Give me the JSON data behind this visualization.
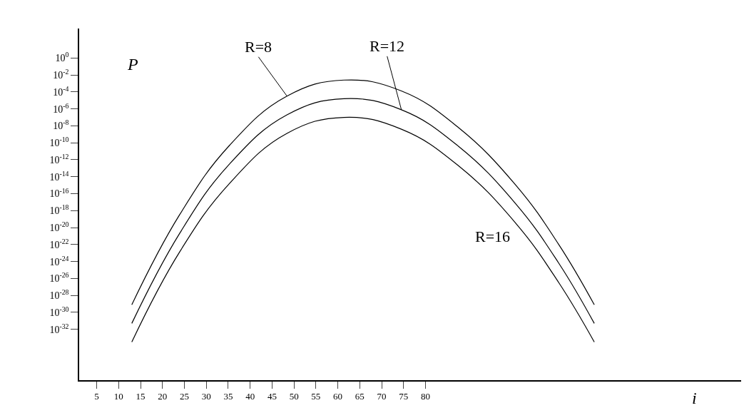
{
  "chart_data": {
    "type": "line",
    "xlabel": "i",
    "ylabel": "P",
    "log": "y",
    "grid": false,
    "legend": false,
    "marker": "none",
    "line_style": "solid",
    "x": [
      13.0,
      23.9,
      35.3,
      48.4,
      61.4,
      74.5,
      87.5,
      100.6,
      110.4,
      118.5
    ],
    "xlim": [
      1,
      152
    ],
    "xticks": [
      5,
      10,
      15,
      20,
      25,
      30,
      35,
      40,
      45,
      50,
      55,
      60,
      65,
      70,
      75,
      80
    ],
    "ylim": [
      1e-38,
      3000
    ],
    "yticks": [
      {
        "value": 1,
        "label": "10$^{0}$"
      },
      {
        "value": 0.01,
        "label": "10$^{-2}$"
      },
      {
        "value": 0.0001,
        "label": "10$^{-4}$"
      },
      {
        "value": 1e-06,
        "label": "10$^{-6}$"
      },
      {
        "value": 1e-08,
        "label": "10$^{-8}$"
      },
      {
        "value": 1e-10,
        "label": "10$^{-10}$"
      },
      {
        "value": 1e-12,
        "label": "10$^{-12}$"
      },
      {
        "value": 1e-14,
        "label": "10$^{-14}$"
      },
      {
        "value": 1e-16,
        "label": "10$^{-16}$"
      },
      {
        "value": 1e-18,
        "label": "10$^{-18}$"
      },
      {
        "value": 1e-20,
        "label": "10$^{-20}$"
      },
      {
        "value": 1e-22,
        "label": "10$^{-22}$"
      },
      {
        "value": 1e-24,
        "label": "10$^{-24}$"
      },
      {
        "value": 1e-26,
        "label": "10$^{-26}$"
      },
      {
        "value": 1e-28,
        "label": "10$^{-28}$"
      },
      {
        "value": 1e-30,
        "label": "10$^{-30}$"
      },
      {
        "value": 1e-32,
        "label": "10$^{-32}$"
      }
    ],
    "series": [
      {
        "name": "R=8",
        "color": "#000000",
        "values": [
          7.9e-30,
          3.2e-19,
          5e-11,
          3.2e-05,
          0.0025,
          0.00013,
          6.3e-09,
          1e-15,
          1e-22,
          7.9e-30
        ]
      },
      {
        "name": "R=12",
        "color": "#000000",
        "values": [
          5e-32,
          2e-21,
          3.2e-13,
          2e-07,
          1.6e-05,
          7.9e-07,
          4e-11,
          6.3e-18,
          6.3e-25,
          5e-32
        ]
      },
      {
        "name": "R=16",
        "color": "#000000",
        "values": [
          3.2e-34,
          1.3e-23,
          1.6e-15,
          1.3e-09,
          1e-07,
          4e-09,
          2e-13,
          3.2e-20,
          3.2e-27,
          3.2e-34
        ]
      }
    ]
  }
}
